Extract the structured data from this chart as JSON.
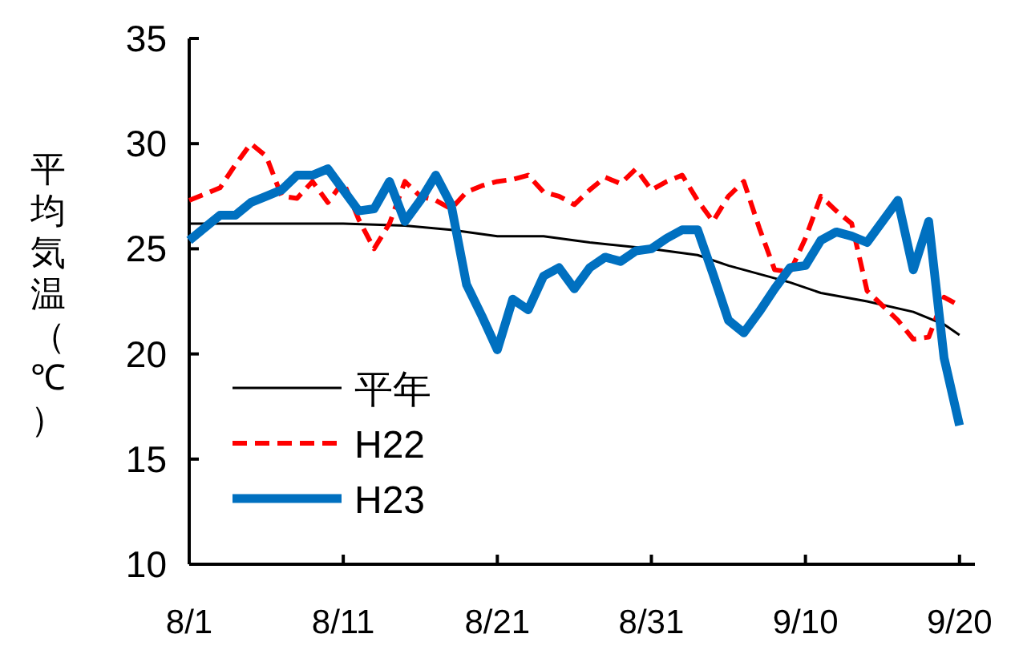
{
  "chart_data": {
    "type": "line",
    "ylabel": "平均気温（℃）",
    "ylim": [
      10,
      35
    ],
    "yticks": [
      10,
      15,
      20,
      25,
      30,
      35
    ],
    "xlim": [
      "--08-01",
      "--09-21"
    ],
    "xticks": [
      {
        "value": "--08-01",
        "label": "8/1"
      },
      {
        "value": "--08-11",
        "label": "8/11"
      },
      {
        "value": "--08-21",
        "label": "8/21"
      },
      {
        "value": "--08-31",
        "label": "8/31"
      },
      {
        "value": "--09-10",
        "label": "9/10"
      },
      {
        "value": "--09-20",
        "label": "9/20"
      }
    ],
    "grid": false,
    "legend": "bottom left",
    "marker": "none",
    "series": [
      {
        "name": "平年",
        "color": "#000000",
        "line_style": "solid",
        "x": [
          "--08-01",
          "--08-11",
          "--08-15",
          "--08-18",
          "--08-21",
          "--08-24",
          "--08-27",
          "--08-31",
          "--09-03",
          "--09-05",
          "--09-07",
          "--09-09",
          "--09-11",
          "--09-14",
          "--09-17",
          "--09-19",
          "--09-20"
        ],
        "values": [
          26.2,
          26.2,
          26.1,
          25.9,
          25.6,
          25.6,
          25.3,
          25.0,
          24.7,
          24.2,
          23.8,
          23.4,
          22.9,
          22.5,
          22.0,
          21.4,
          20.9
        ]
      },
      {
        "name": "H22",
        "color": "#ff0000",
        "line_style": "dashed",
        "x": [
          "--08-01",
          "--08-02",
          "--08-03",
          "--08-04",
          "--08-05",
          "--08-06",
          "--08-07",
          "--08-08",
          "--08-09",
          "--08-10",
          "--08-11",
          "--08-12",
          "--08-13",
          "--08-14",
          "--08-15",
          "--08-16",
          "--08-17",
          "--08-18",
          "--08-19",
          "--08-20",
          "--08-21",
          "--08-22",
          "--08-23",
          "--08-24",
          "--08-25",
          "--08-26",
          "--08-27",
          "--08-28",
          "--08-29",
          "--08-30",
          "--08-31",
          "--09-01",
          "--09-02",
          "--09-03",
          "--09-04",
          "--09-05",
          "--09-06",
          "--09-07",
          "--09-08",
          "--09-09",
          "--09-10",
          "--09-11",
          "--09-12",
          "--09-13",
          "--09-14",
          "--09-15",
          "--09-16",
          "--09-17",
          "--09-18",
          "--09-19",
          "--09-20"
        ],
        "values": [
          27.3,
          27.6,
          27.9,
          29.0,
          30.0,
          29.4,
          27.5,
          27.4,
          28.2,
          27.2,
          28.2,
          26.4,
          25.0,
          26.2,
          28.2,
          27.5,
          27.3,
          26.9,
          27.7,
          28.0,
          28.2,
          28.3,
          28.5,
          27.7,
          27.5,
          27.1,
          27.8,
          28.4,
          28.1,
          28.8,
          27.8,
          28.2,
          28.5,
          27.3,
          26.3,
          27.5,
          28.2,
          26.0,
          24.0,
          23.9,
          25.5,
          27.5,
          26.8,
          26.2,
          23.0,
          22.3,
          21.6,
          20.7,
          20.8,
          22.7,
          22.3
        ]
      },
      {
        "name": "H23",
        "color": "#0070c0",
        "line_style": "solid",
        "x": [
          "--08-01",
          "--08-02",
          "--08-03",
          "--08-04",
          "--08-05",
          "--08-06",
          "--08-07",
          "--08-08",
          "--08-09",
          "--08-10",
          "--08-11",
          "--08-12",
          "--08-13",
          "--08-14",
          "--08-15",
          "--08-16",
          "--08-17",
          "--08-18",
          "--08-19",
          "--08-20",
          "--08-21",
          "--08-22",
          "--08-23",
          "--08-24",
          "--08-25",
          "--08-26",
          "--08-27",
          "--08-28",
          "--08-29",
          "--08-30",
          "--08-31",
          "--09-01",
          "--09-02",
          "--09-03",
          "--09-04",
          "--09-05",
          "--09-06",
          "--09-07",
          "--09-08",
          "--09-09",
          "--09-10",
          "--09-11",
          "--09-12",
          "--09-13",
          "--09-14",
          "--09-15",
          "--09-16",
          "--09-17",
          "--09-18",
          "--09-19",
          "--09-20"
        ],
        "values": [
          25.4,
          26.0,
          26.6,
          26.6,
          27.2,
          27.5,
          27.8,
          28.5,
          28.5,
          28.8,
          27.8,
          26.8,
          26.9,
          28.2,
          26.3,
          27.3,
          28.5,
          27.1,
          23.3,
          21.8,
          20.2,
          22.6,
          22.1,
          23.7,
          24.1,
          23.1,
          24.1,
          24.6,
          24.4,
          24.9,
          25.0,
          25.5,
          25.9,
          25.9,
          23.8,
          21.6,
          21.0,
          22.0,
          23.1,
          24.1,
          24.2,
          25.4,
          25.8,
          25.6,
          25.3,
          26.3,
          27.3,
          24.0,
          26.3,
          19.8,
          16.6
        ]
      }
    ]
  }
}
